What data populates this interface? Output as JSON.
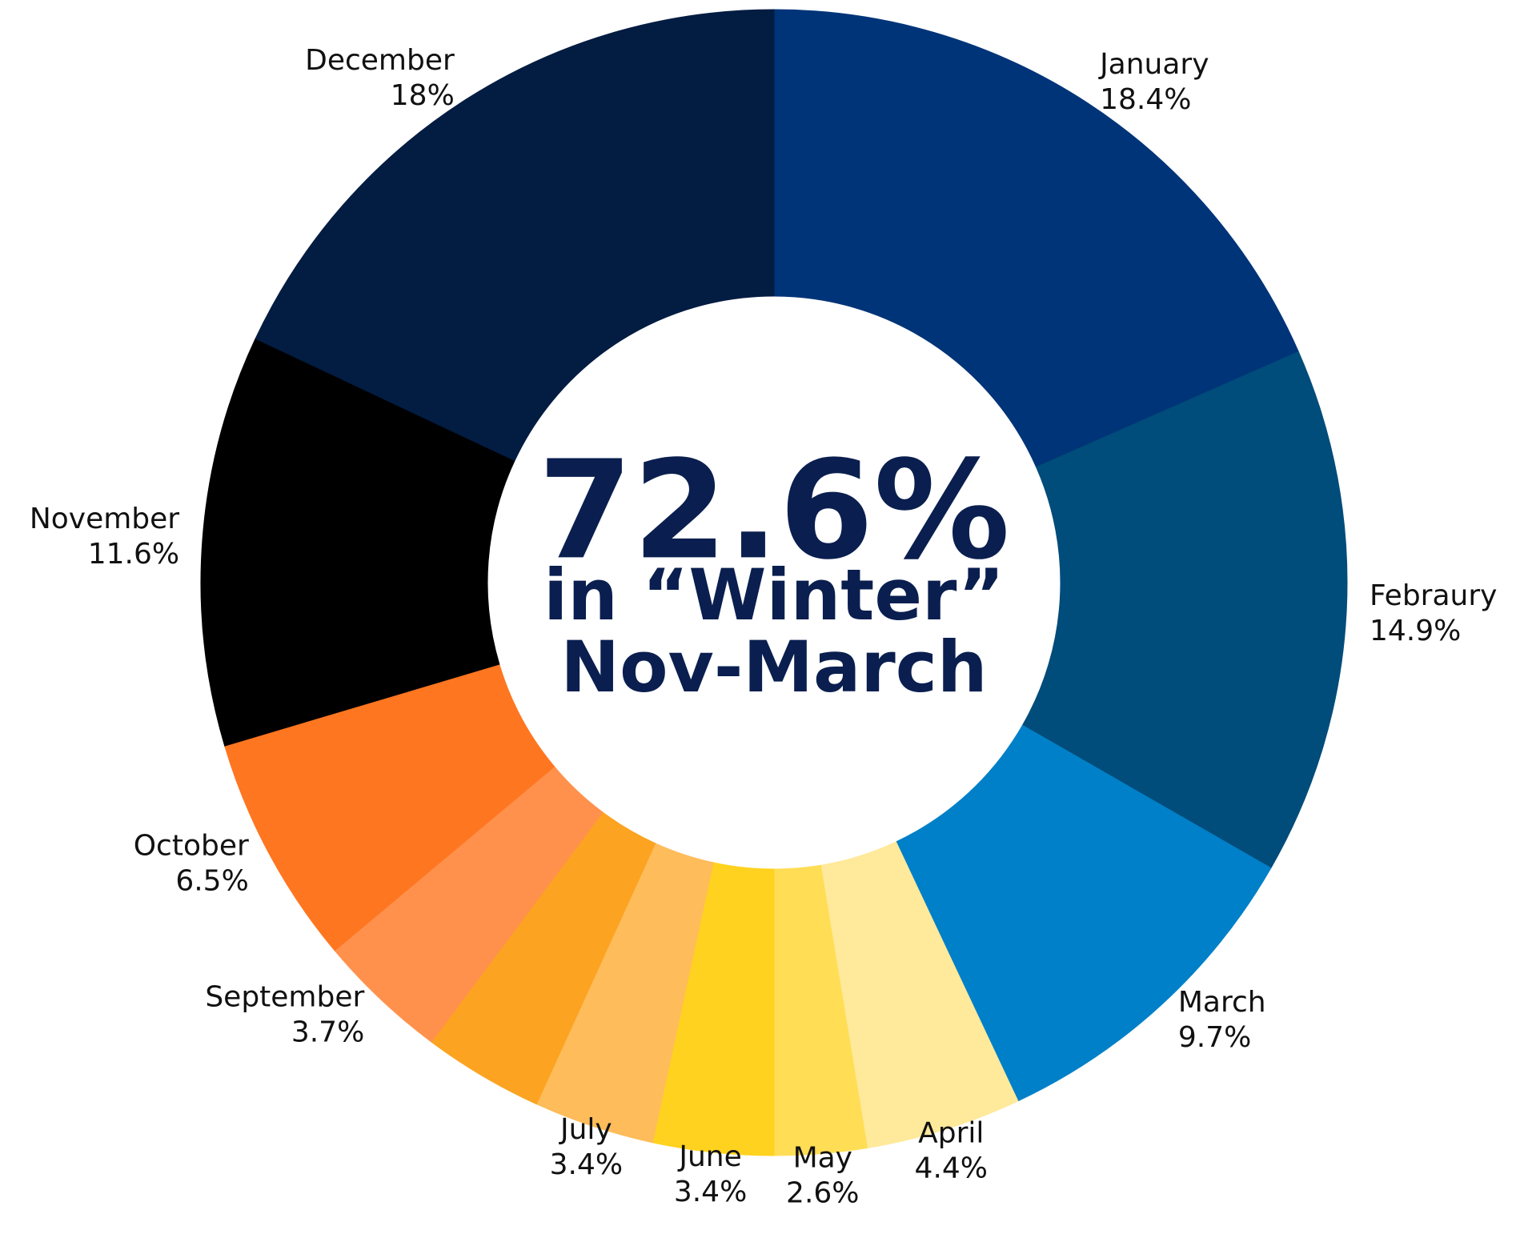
{
  "chart_data": {
    "type": "donut",
    "categories": [
      "January",
      "Febraury",
      "March",
      "April",
      "May",
      "June",
      "July",
      null,
      "September",
      "October",
      "November",
      "December"
    ],
    "values": [
      18.4,
      14.9,
      9.7,
      4.4,
      2.6,
      3.4,
      3.4,
      3.4,
      3.7,
      6.5,
      11.6,
      18
    ],
    "value_labels": [
      "18.4%",
      "14.9%",
      "9.7%",
      "4.4%",
      "2.6%",
      "3.4%",
      "3.4%",
      null,
      "3.7%",
      "6.5%",
      "11.6%",
      "18%"
    ],
    "colors": [
      "#003478",
      "#004c7a",
      "#0080c8",
      "#ffe99a",
      "#ffdd55",
      "#ffd21f",
      "#febc5a",
      "#fca321",
      "#ff914d",
      "#ff7620",
      "#000000",
      "#031c42"
    ],
    "center_text": [
      "72.6%",
      "in “Winter”",
      "Nov-March"
    ]
  }
}
